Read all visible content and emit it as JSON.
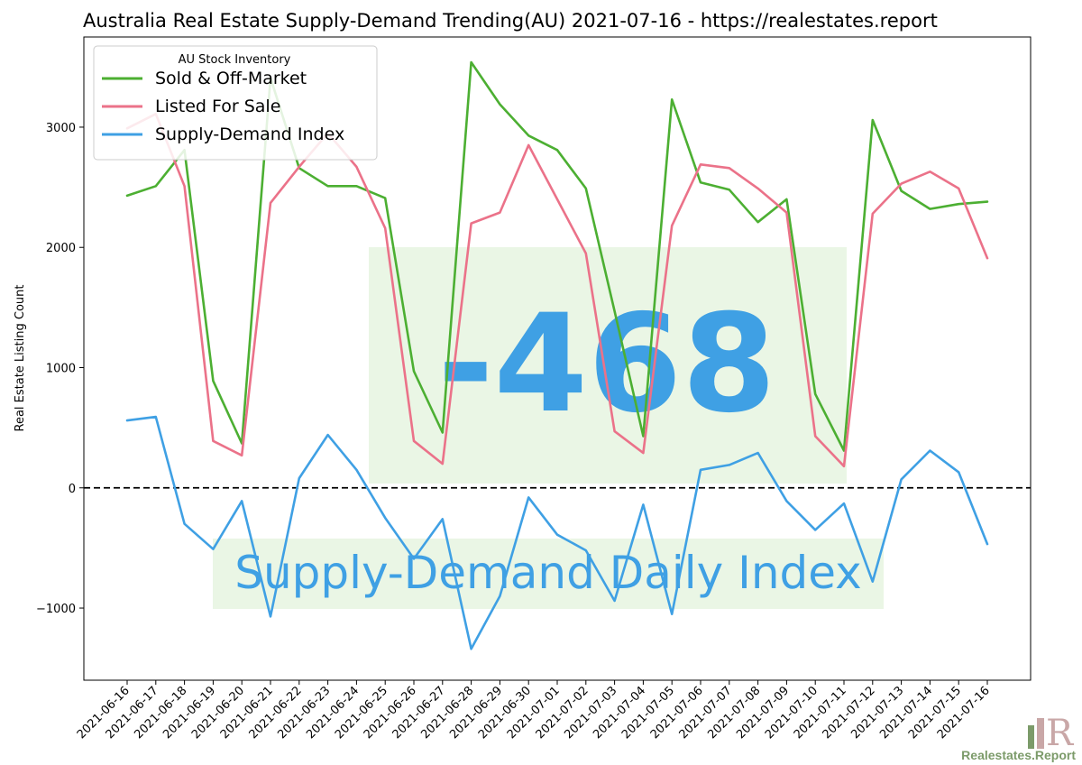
{
  "chart_data": {
    "type": "line",
    "title": "Australia Real Estate Supply-Demand Trending(AU) 2021-07-16 - https://realestates.report",
    "ylabel": "Real Estate Listing Count",
    "xlabel": "",
    "ylim": [
      -1600,
      3750
    ],
    "yticks": [
      {
        "value": -1000,
        "label": "−1000"
      },
      {
        "value": 0,
        "label": "0"
      },
      {
        "value": 1000,
        "label": "1000"
      },
      {
        "value": 2000,
        "label": "2000"
      },
      {
        "value": 3000,
        "label": "3000"
      }
    ],
    "categories": [
      "2021-06-16",
      "2021-06-17",
      "2021-06-18",
      "2021-06-19",
      "2021-06-20",
      "2021-06-21",
      "2021-06-22",
      "2021-06-23",
      "2021-06-24",
      "2021-06-25",
      "2021-06-26",
      "2021-06-27",
      "2021-06-28",
      "2021-06-29",
      "2021-06-30",
      "2021-07-01",
      "2021-07-02",
      "2021-07-03",
      "2021-07-04",
      "2021-07-05",
      "2021-07-06",
      "2021-07-07",
      "2021-07-08",
      "2021-07-09",
      "2021-07-10",
      "2021-07-11",
      "2021-07-12",
      "2021-07-13",
      "2021-07-14",
      "2021-07-15",
      "2021-07-16"
    ],
    "series": [
      {
        "name": "Sold & Off-Market",
        "color": "#4caf32",
        "values": [
          2430,
          2510,
          2810,
          890,
          370,
          3410,
          2660,
          2510,
          2510,
          2410,
          970,
          460,
          3540,
          3190,
          2930,
          2810,
          2490,
          1470,
          430,
          3230,
          2540,
          2480,
          2210,
          2400,
          780,
          310,
          3060,
          2470,
          2320,
          2360,
          2380
        ]
      },
      {
        "name": "Listed For Sale",
        "color": "#eb7289",
        "values": [
          2990,
          3110,
          2510,
          390,
          270,
          2370,
          2670,
          2950,
          2670,
          2160,
          390,
          200,
          2200,
          2290,
          2850,
          2400,
          1950,
          470,
          290,
          2180,
          2690,
          2660,
          2490,
          2290,
          430,
          180,
          2280,
          2530,
          2630,
          2490,
          1910
        ]
      },
      {
        "name": "Supply-Demand Index",
        "color": "#3fa0e4",
        "values": [
          560,
          590,
          -300,
          -510,
          -110,
          -1070,
          80,
          440,
          150,
          -250,
          -590,
          -260,
          -1340,
          -900,
          -80,
          -390,
          -520,
          -940,
          -140,
          -1050,
          150,
          190,
          290,
          -110,
          -350,
          -130,
          -780,
          70,
          310,
          130,
          -468
        ]
      }
    ],
    "legend": {
      "title": "AU Stock Inventory",
      "position": "top-left"
    },
    "zero_line": {
      "value": 0,
      "style": "dashed",
      "color": "#000000"
    },
    "annotation_value": "-468",
    "annotation_label": "Supply-Demand Daily Index",
    "annotation_color": "#3fa0e4",
    "highlight_color": "#e3f3dc",
    "grid": false
  },
  "branding": {
    "text": "Realestates.Report",
    "color": "#7c9b6a",
    "icon_color": "#c9a7a7"
  }
}
